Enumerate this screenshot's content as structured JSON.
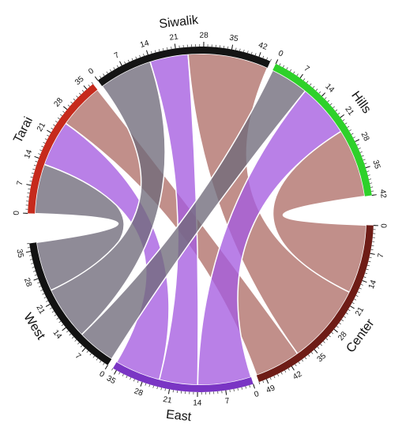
{
  "chart_data": {
    "type": "chord",
    "nodes": [
      {
        "name": "Tarai",
        "color": "#c62a1c",
        "ticks": [
          0,
          7,
          14,
          21,
          28,
          35
        ]
      },
      {
        "name": "Siwalik",
        "color": "#141414",
        "ticks": [
          0,
          7,
          14,
          21,
          28,
          35,
          42
        ]
      },
      {
        "name": "Hills",
        "color": "#2ed12a",
        "ticks": [
          0,
          7,
          14,
          21,
          28,
          35,
          42
        ]
      },
      {
        "name": "Center",
        "color": "#6e1c16",
        "ribbon_color": "#b07069",
        "ticks": [
          0,
          7,
          14,
          21,
          28,
          35,
          42,
          49
        ]
      },
      {
        "name": "East",
        "color": "#7a35c4",
        "ribbon_color": "#a55ce0",
        "ticks": [
          0,
          7,
          14,
          21,
          28,
          35
        ]
      },
      {
        "name": "West",
        "color": "#121212",
        "ribbon_color": "#6f6a7a",
        "ticks": [
          0,
          7,
          14,
          21,
          28,
          35
        ]
      }
    ],
    "flows": [
      {
        "from": "Tarai",
        "to": "West",
        "value": 13
      },
      {
        "from": "Tarai",
        "to": "East",
        "value": 12
      },
      {
        "from": "Tarai",
        "to": "Center",
        "value": 12
      },
      {
        "from": "Siwalik",
        "to": "West",
        "value": 14
      },
      {
        "from": "Siwalik",
        "to": "East",
        "value": 10
      },
      {
        "from": "Siwalik",
        "to": "Center",
        "value": 21
      },
      {
        "from": "Hills",
        "to": "West",
        "value": 10
      },
      {
        "from": "Hills",
        "to": "East",
        "value": 14
      },
      {
        "from": "Hills",
        "to": "Center",
        "value": 18
      }
    ]
  }
}
